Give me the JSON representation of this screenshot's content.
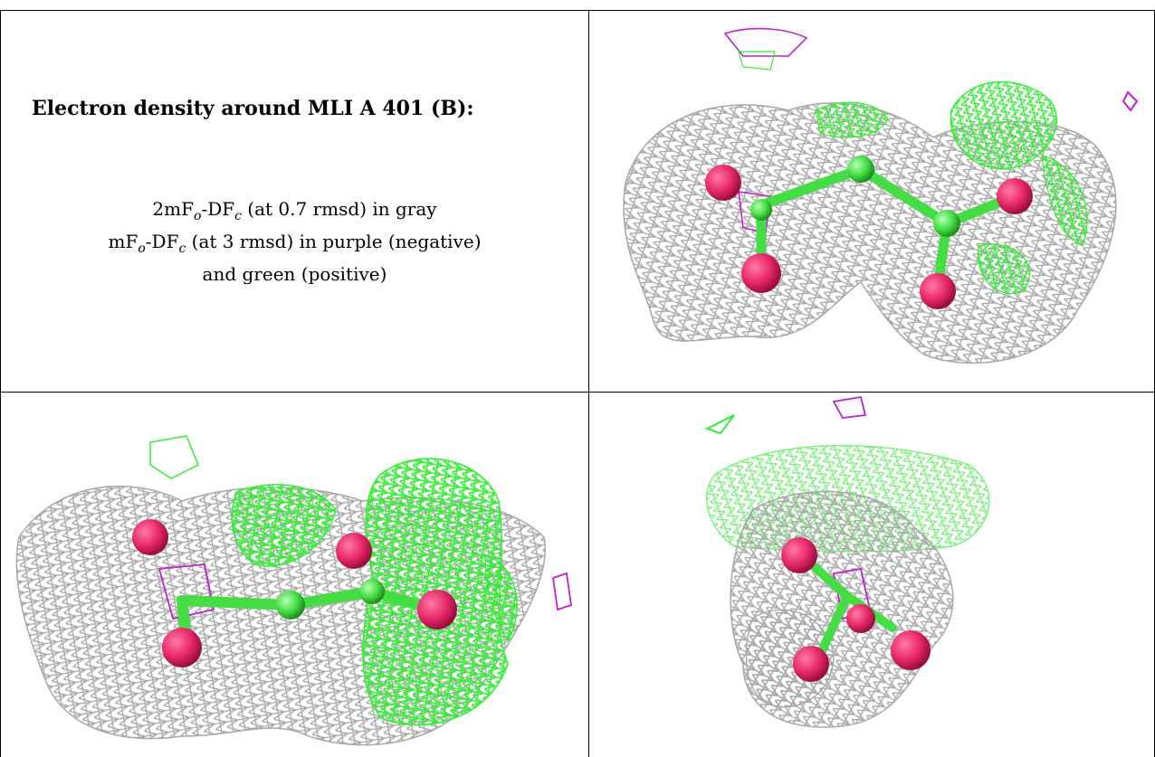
{
  "caption": {
    "title": "Electron density around MLI A 401 (B):",
    "line1": {
      "a": "2mF",
      "a_sub": "o",
      "b": "-DF",
      "b_sub": "c",
      "c": " (at 0.7 rmsd) in gray"
    },
    "line2": {
      "a": "mF",
      "a_sub": "o",
      "b": "-DF",
      "b_sub": "c",
      "c": " (at 3 rmsd) in purple (negative)"
    },
    "line3": "and green (positive)"
  },
  "colors": {
    "gray_mesh": "#a8a8a8",
    "green_mesh": "#33ee33",
    "purple_mesh": "#c020d0",
    "oxygen": "#e8286a",
    "carbon": "#44dd44"
  },
  "panels": [
    {
      "view": "top-right"
    },
    {
      "view": "bottom-left"
    },
    {
      "view": "bottom-right"
    }
  ]
}
